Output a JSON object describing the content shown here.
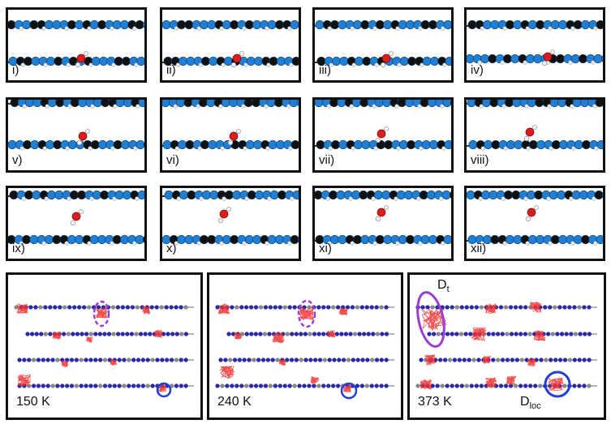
{
  "top_panels": [
    {
      "label": "i)"
    },
    {
      "label": "ii)"
    },
    {
      "label": "iii)"
    },
    {
      "label": "iv)"
    },
    {
      "label": "v)"
    },
    {
      "label": "vi)"
    },
    {
      "label": "vii)"
    },
    {
      "label": "viii)"
    },
    {
      "label": "ix)"
    },
    {
      "label": "x)"
    },
    {
      "label": "xi)"
    },
    {
      "label": "xii)"
    }
  ],
  "bottom_panels": [
    {
      "temperature": "150 K"
    },
    {
      "temperature": "240 K"
    },
    {
      "temperature": "373 K"
    }
  ],
  "annotations": {
    "dt_main": "D",
    "dt_sub": "t",
    "dloc_main": "D",
    "dloc_sub": "loc"
  },
  "colors": {
    "nitrogen": "#1e7fd4",
    "carbon": "#111111",
    "hydrogen": "#e8e8e8",
    "oxygen": "#d81e1e",
    "trajectory": "#f03030",
    "local_circle": "#1f3fd6",
    "transfer_ellipse": "#9b3fd0",
    "layer_line_blue": "#2a2aa8",
    "layer_line_gray": "#888888"
  }
}
